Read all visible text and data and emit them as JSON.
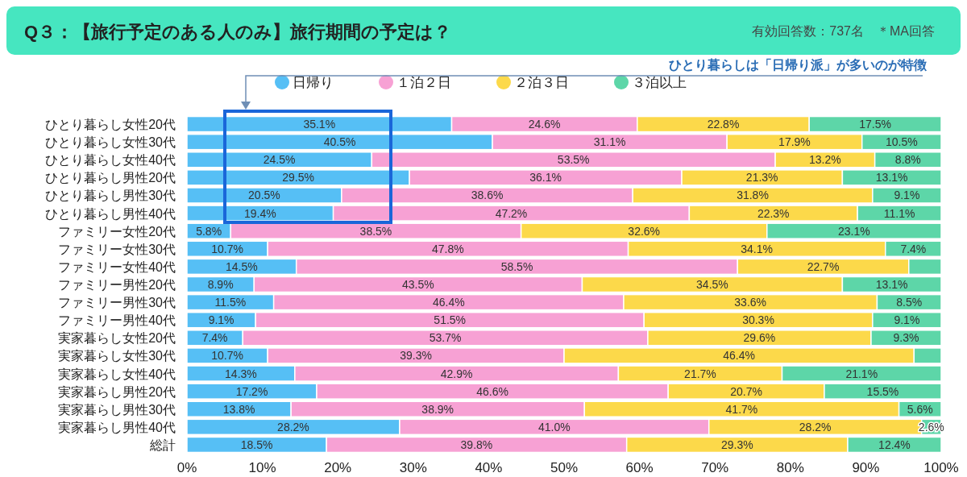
{
  "chart_data": {
    "type": "bar",
    "orientation": "horizontal",
    "stacked": true,
    "title": "Q３：【旅行予定のある人のみ】旅行期間の予定は？",
    "subtitle": "有効回答数：737名　＊MA回答",
    "annotations": [
      "ひとり暮らしは「日帰り派」が多いのが特徴"
    ],
    "categories": [
      "ひとり暮らし女性20代",
      "ひとり暮らし女性30代",
      "ひとり暮らし女性40代",
      "ひとり暮らし男性20代",
      "ひとり暮らし男性30代",
      "ひとり暮らし男性40代",
      "ファミリー女性20代",
      "ファミリー女性30代",
      "ファミリー女性40代",
      "ファミリー男性20代",
      "ファミリー男性30代",
      "ファミリー男性40代",
      "実家暮らし女性20代",
      "実家暮らし女性30代",
      "実家暮らし女性40代",
      "実家暮らし男性20代",
      "実家暮らし男性30代",
      "実家暮らし男性40代",
      "総計"
    ],
    "series": [
      {
        "name": "日帰り",
        "color": "#56bff5",
        "values": [
          35.1,
          40.5,
          24.5,
          29.5,
          20.5,
          19.4,
          5.8,
          10.7,
          14.5,
          8.9,
          11.5,
          9.1,
          7.4,
          10.7,
          14.3,
          17.2,
          13.8,
          28.2,
          18.5
        ],
        "value_labels": [
          "35.1%",
          "40.5%",
          "24.5%",
          "29.5%",
          "20.5%",
          "19.4%",
          "5.8%",
          "10.7%",
          "14.5%",
          "8.9%",
          "11.5%",
          "9.1%",
          "7.4%",
          "10.7%",
          "14.3%",
          "17.2%",
          "13.8%",
          "28.2%",
          "18.5%"
        ]
      },
      {
        "name": "１泊２日",
        "color": "#f7a1d4",
        "values": [
          24.6,
          31.1,
          53.5,
          36.1,
          38.6,
          47.2,
          38.5,
          47.8,
          58.5,
          43.5,
          46.4,
          51.5,
          53.7,
          39.3,
          42.9,
          46.6,
          38.9,
          41.0,
          39.8
        ],
        "value_labels": [
          "24.6%",
          "31.1%",
          "53.5%",
          "36.1%",
          "38.6%",
          "47.2%",
          "38.5%",
          "47.8%",
          "58.5%",
          "43.5%",
          "46.4%",
          "51.5%",
          "53.7%",
          "39.3%",
          "42.9%",
          "46.6%",
          "38.9%",
          "41.0%",
          "39.8%"
        ]
      },
      {
        "name": "２泊３日",
        "color": "#fcd94a",
        "values": [
          22.8,
          17.9,
          13.2,
          21.3,
          31.8,
          22.3,
          32.6,
          34.1,
          22.7,
          34.5,
          33.6,
          30.3,
          29.6,
          46.4,
          21.7,
          20.7,
          41.7,
          28.2,
          29.3
        ],
        "value_labels": [
          "22.8%",
          "17.9%",
          "13.2%",
          "21.3%",
          "31.8%",
          "22.3%",
          "32.6%",
          "34.1%",
          "22.7%",
          "34.5%",
          "33.6%",
          "30.3%",
          "29.6%",
          "46.4%",
          "21.7%",
          "20.7%",
          "41.7%",
          "28.2%",
          "29.3%"
        ]
      },
      {
        "name": "３泊以上",
        "color": "#5dd6a8",
        "values": [
          17.5,
          10.5,
          8.8,
          13.1,
          9.1,
          11.1,
          23.1,
          7.4,
          4.3,
          13.1,
          8.5,
          9.1,
          9.3,
          3.6,
          21.1,
          15.5,
          5.6,
          2.6,
          12.4
        ],
        "value_labels": [
          "17.5%",
          "10.5%",
          "8.8%",
          "13.1%",
          "9.1%",
          "11.1%",
          "23.1%",
          "7.4%",
          null,
          "13.1%",
          "8.5%",
          "9.1%",
          "9.3%",
          null,
          "21.1%",
          "15.5%",
          "5.6%",
          "2.6%",
          "12.4%"
        ]
      }
    ],
    "xlim": [
      0,
      100
    ],
    "xticks": [
      {
        "value": 0,
        "label": "0%"
      },
      {
        "value": 10,
        "label": "10%"
      },
      {
        "value": 20,
        "label": "20%"
      },
      {
        "value": 30,
        "label": "30%"
      },
      {
        "value": 40,
        "label": "40%"
      },
      {
        "value": 50,
        "label": "50%"
      },
      {
        "value": 60,
        "label": "60%"
      },
      {
        "value": 70,
        "label": "70%"
      },
      {
        "value": 80,
        "label": "80%"
      },
      {
        "value": 90,
        "label": "90%"
      },
      {
        "value": 100,
        "label": "100%"
      }
    ],
    "legend": "top"
  }
}
